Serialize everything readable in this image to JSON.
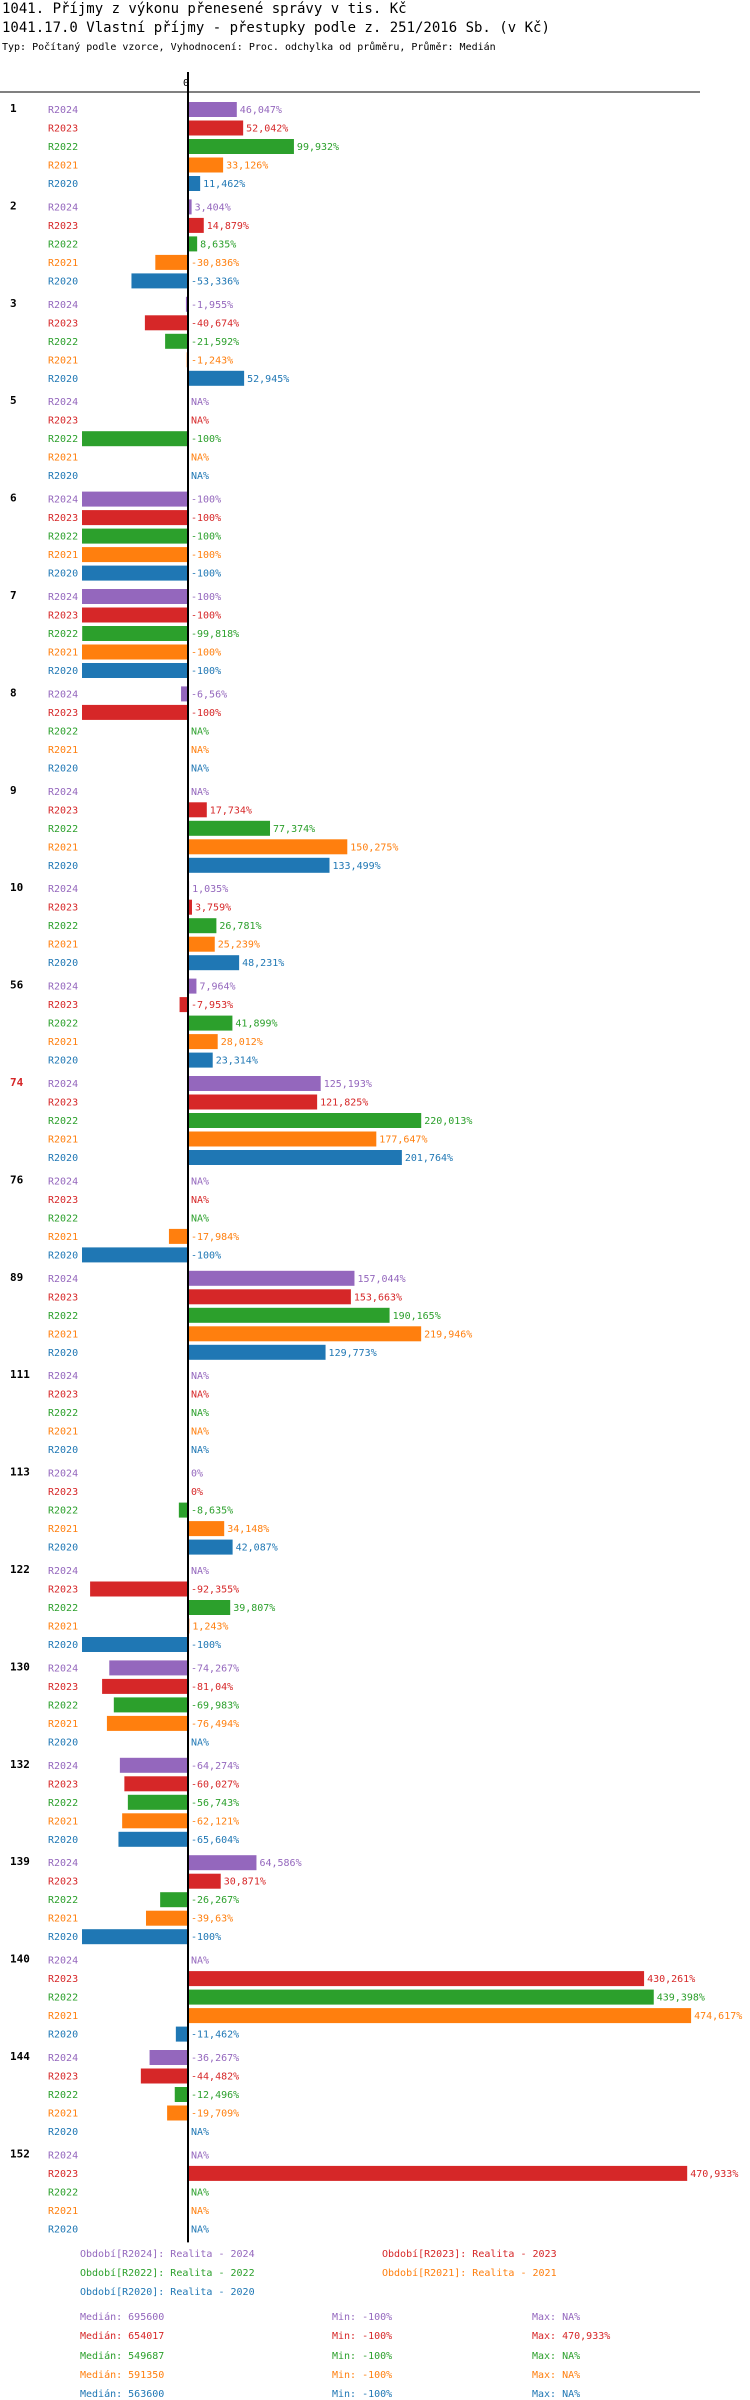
{
  "header": {
    "title": "1041. Příjmy z výkonu přenesené správy v tis. Kč",
    "subtitle": "1041.17.0 Vlastní příjmy - přestupky podle z. 251/2016 Sb. (v Kč)",
    "description": "Typ: Počítaný podle vzorce, Vyhodnocení: Proc. odchylka od průměru, Průměr: Medián"
  },
  "colors": {
    "R2024": "#9467bd",
    "R2023": "#d62728",
    "R2022": "#2ca02c",
    "R2021": "#ff7f0e",
    "R2020": "#1f77b4",
    "highlight_group": "#d62728"
  },
  "chart_data": {
    "type": "bar",
    "orientation": "horizontal",
    "zero_label": "0",
    "series_labels": [
      "R2024",
      "R2023",
      "R2022",
      "R2021",
      "R2020"
    ],
    "groups": [
      {
        "id": "1",
        "values": [
          46.047,
          52.042,
          99.932,
          33.126,
          11.462
        ],
        "labels": [
          "46,047%",
          "52,042%",
          "99,932%",
          "33,126%",
          "11,462%"
        ]
      },
      {
        "id": "2",
        "values": [
          3.404,
          14.879,
          8.635,
          -30.836,
          -53.336
        ],
        "labels": [
          "3,404%",
          "14,879%",
          "8,635%",
          "-30,836%",
          "-53,336%"
        ]
      },
      {
        "id": "3",
        "values": [
          -1.955,
          -40.674,
          -21.592,
          -1.243,
          52.945
        ],
        "labels": [
          "-1,955%",
          "-40,674%",
          "-21,592%",
          "-1,243%",
          "52,945%"
        ]
      },
      {
        "id": "5",
        "values": [
          null,
          null,
          -100,
          null,
          null
        ],
        "labels": [
          "NA%",
          "NA%",
          "-100%",
          "NA%",
          "NA%"
        ]
      },
      {
        "id": "6",
        "values": [
          -100,
          -100,
          -100,
          -100,
          -100
        ],
        "labels": [
          "-100%",
          "-100%",
          "-100%",
          "-100%",
          "-100%"
        ]
      },
      {
        "id": "7",
        "values": [
          -100,
          -100,
          -99.818,
          -100,
          -100
        ],
        "labels": [
          "-100%",
          "-100%",
          "-99,818%",
          "-100%",
          "-100%"
        ]
      },
      {
        "id": "8",
        "values": [
          -6.56,
          -100,
          null,
          null,
          null
        ],
        "labels": [
          "-6,56%",
          "-100%",
          "NA%",
          "NA%",
          "NA%"
        ]
      },
      {
        "id": "9",
        "values": [
          null,
          17.734,
          77.374,
          150.275,
          133.499
        ],
        "labels": [
          "NA%",
          "17,734%",
          "77,374%",
          "150,275%",
          "133,499%"
        ]
      },
      {
        "id": "10",
        "values": [
          1.035,
          3.759,
          26.781,
          25.239,
          48.231
        ],
        "labels": [
          "1,035%",
          "3,759%",
          "26,781%",
          "25,239%",
          "48,231%"
        ]
      },
      {
        "id": "56",
        "values": [
          7.964,
          -7.953,
          41.899,
          28.012,
          23.314
        ],
        "labels": [
          "7,964%",
          "-7,953%",
          "41,899%",
          "28,012%",
          "23,314%"
        ]
      },
      {
        "id": "74",
        "values": [
          125.193,
          121.825,
          220.013,
          177.647,
          201.764
        ],
        "labels": [
          "125,193%",
          "121,825%",
          "220,013%",
          "177,647%",
          "201,764%"
        ],
        "highlight": true
      },
      {
        "id": "76",
        "values": [
          null,
          null,
          null,
          -17.984,
          -100
        ],
        "labels": [
          "NA%",
          "NA%",
          "NA%",
          "-17,984%",
          "-100%"
        ]
      },
      {
        "id": "89",
        "values": [
          157.044,
          153.663,
          190.165,
          219.946,
          129.773
        ],
        "labels": [
          "157,044%",
          "153,663%",
          "190,165%",
          "219,946%",
          "129,773%"
        ]
      },
      {
        "id": "111",
        "values": [
          null,
          null,
          null,
          null,
          null
        ],
        "labels": [
          "NA%",
          "NA%",
          "NA%",
          "NA%",
          "NA%"
        ]
      },
      {
        "id": "113",
        "values": [
          0,
          0,
          -8.635,
          34.148,
          42.087
        ],
        "labels": [
          "0%",
          "0%",
          "-8,635%",
          "34,148%",
          "42,087%"
        ]
      },
      {
        "id": "122",
        "values": [
          null,
          -92.355,
          39.807,
          1.243,
          -100
        ],
        "labels": [
          "NA%",
          "-92,355%",
          "39,807%",
          "1,243%",
          "-100%"
        ]
      },
      {
        "id": "130",
        "values": [
          -74.267,
          -81.04,
          -69.983,
          -76.494,
          null
        ],
        "labels": [
          "-74,267%",
          "-81,04%",
          "-69,983%",
          "-76,494%",
          "NA%"
        ]
      },
      {
        "id": "132",
        "values": [
          -64.274,
          -60.027,
          -56.743,
          -62.121,
          -65.604
        ],
        "labels": [
          "-64,274%",
          "-60,027%",
          "-56,743%",
          "-62,121%",
          "-65,604%"
        ]
      },
      {
        "id": "139",
        "values": [
          64.586,
          30.871,
          -26.267,
          -39.63,
          -100
        ],
        "labels": [
          "64,586%",
          "30,871%",
          "-26,267%",
          "-39,63%",
          "-100%"
        ]
      },
      {
        "id": "140",
        "values": [
          null,
          430.261,
          439.398,
          474.617,
          -11.462
        ],
        "labels": [
          "NA%",
          "430,261%",
          "439,398%",
          "474,617%",
          "-11,462%"
        ]
      },
      {
        "id": "144",
        "values": [
          -36.267,
          -44.482,
          -12.496,
          -19.709,
          null
        ],
        "labels": [
          "-36,267%",
          "-44,482%",
          "-12,496%",
          "-19,709%",
          "NA%"
        ]
      },
      {
        "id": "152",
        "values": [
          null,
          470.933,
          null,
          null,
          null
        ],
        "labels": [
          "NA%",
          "470,933%",
          "NA%",
          "NA%",
          "NA%"
        ]
      }
    ]
  },
  "legend": {
    "items": [
      {
        "key": "R2024",
        "text": "Období[R2024]: Realita - 2024"
      },
      {
        "key": "R2023",
        "text": "Období[R2023]: Realita - 2023"
      },
      {
        "key": "R2022",
        "text": "Období[R2022]: Realita - 2022"
      },
      {
        "key": "R2021",
        "text": "Období[R2021]: Realita - 2021"
      },
      {
        "key": "R2020",
        "text": "Období[R2020]: Realita - 2020"
      }
    ],
    "stats": [
      {
        "key": "R2024",
        "median": "Medián: 695600",
        "min": "Min: -100%",
        "max": "Max: NA%"
      },
      {
        "key": "R2023",
        "median": "Medián: 654017",
        "min": "Min: -100%",
        "max": "Max: 470,933%"
      },
      {
        "key": "R2022",
        "median": "Medián: 549687",
        "min": "Min: -100%",
        "max": "Max: NA%"
      },
      {
        "key": "R2021",
        "median": "Medián: 591350",
        "min": "Min: -100%",
        "max": "Max: NA%"
      },
      {
        "key": "R2020",
        "median": "Medián: 563600",
        "min": "Min: -100%",
        "max": "Max: NA%"
      }
    ]
  }
}
